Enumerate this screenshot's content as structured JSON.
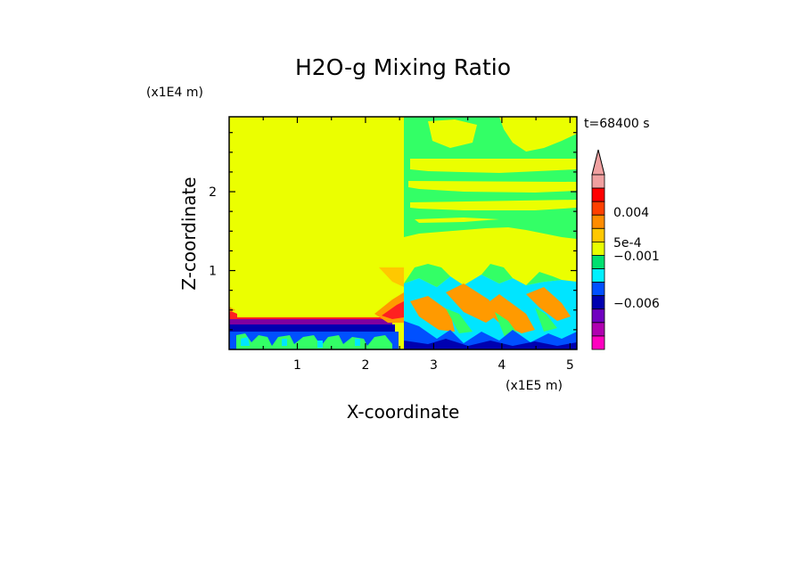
{
  "chart_data": {
    "type": "heatmap",
    "title": "H2O-g Mixing Ratio",
    "xlabel": "X-coordinate",
    "ylabel": "Z-coordinate",
    "x_scale_label": "(x1E5 m)",
    "z_scale_label": "(x1E4 m)",
    "time_label": "t=68400 s",
    "xlim": [
      0,
      5.1
    ],
    "zlim": [
      0,
      2.95
    ],
    "x_ticks": [
      1,
      2,
      3,
      4,
      5
    ],
    "z_ticks": [
      1,
      2
    ],
    "x_tick_labels": [
      "1",
      "2",
      "3",
      "4",
      "5"
    ],
    "z_tick_labels": [
      "1",
      "2"
    ],
    "colorbar": {
      "labels": [
        "0.004",
        "5e-4",
        "−0.001",
        "−0.006"
      ],
      "levels_top_to_bottom": [
        "#f0a0a0",
        "#ff0000",
        "#ff4000",
        "#ff8c00",
        "#ffc800",
        "#e8ff00",
        "#00e070",
        "#00f0ff",
        "#0050ff",
        "#0000b0",
        "#7000c0",
        "#b000b0",
        "#ff00c0"
      ],
      "extend_max": true
    },
    "colors": {
      "yellow": "#ebff00",
      "green": "#33ff66",
      "cyan": "#00e5ff",
      "blue": "#0050ff",
      "navy": "#0000b0",
      "orange": "#ff9a00",
      "red": "#ff2020",
      "purple": "#8000a0",
      "magenta": "#e000c0"
    }
  }
}
